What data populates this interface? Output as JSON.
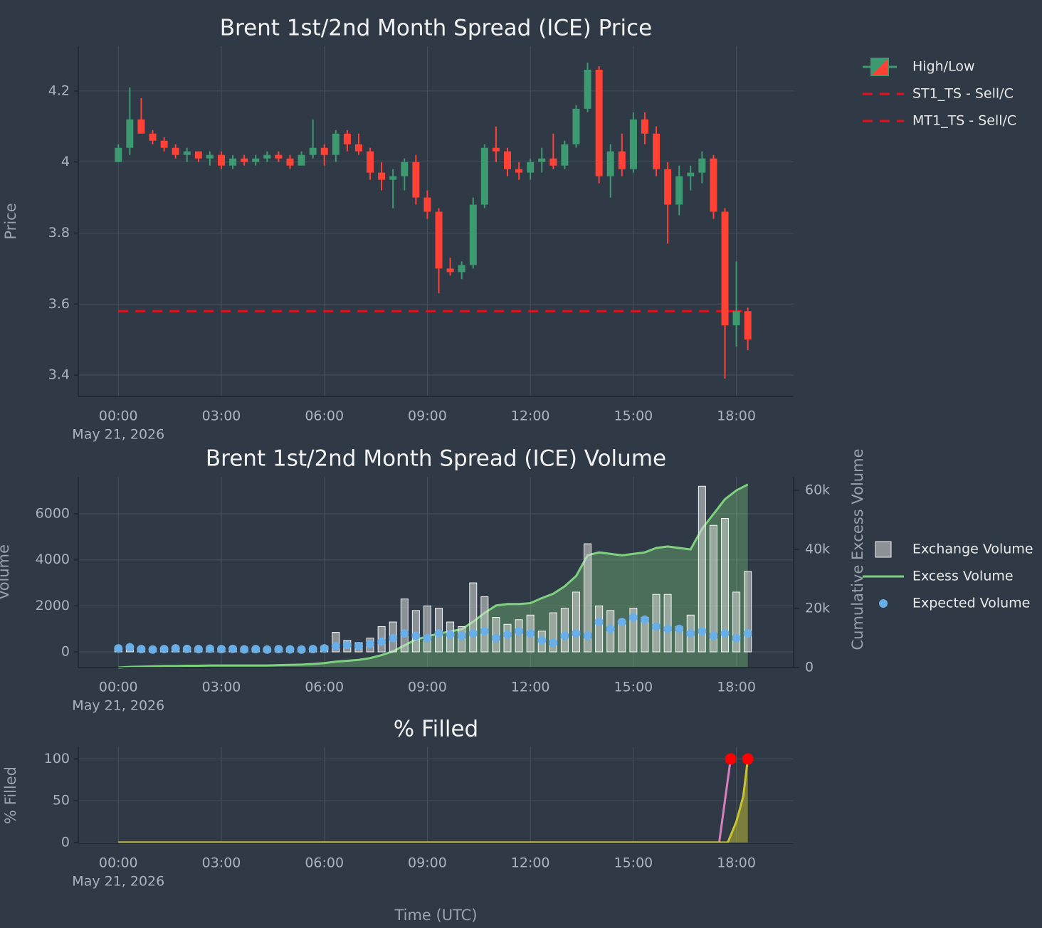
{
  "chart_data": [
    {
      "type": "candlestick",
      "title": "Brent 1st/2nd Month Spread (ICE) Price",
      "y_title": "Price",
      "date_label": "May 21, 2026",
      "name": "High/Low",
      "increasing_color": "#3d9970",
      "decreasing_color": "#ff4136",
      "x": [
        0,
        20,
        40,
        60,
        80,
        100,
        120,
        140,
        160,
        180,
        200,
        220,
        240,
        260,
        280,
        300,
        320,
        340,
        360,
        380,
        400,
        420,
        440,
        460,
        480,
        500,
        520,
        540,
        560,
        580,
        600,
        620,
        640,
        660,
        680,
        700,
        720,
        740,
        760,
        780,
        800,
        820,
        840,
        860,
        880,
        900,
        920,
        940,
        960,
        980,
        1000,
        1020,
        1040,
        1060,
        1080,
        1100
      ],
      "open": [
        4.0,
        4.04,
        4.12,
        4.08,
        4.06,
        4.04,
        4.02,
        4.03,
        4.01,
        4.02,
        3.99,
        4.01,
        4.0,
        4.01,
        4.02,
        4.01,
        3.99,
        4.02,
        4.04,
        4.02,
        4.08,
        4.05,
        4.03,
        3.97,
        3.95,
        3.96,
        4.0,
        3.9,
        3.86,
        3.7,
        3.69,
        3.71,
        3.88,
        4.04,
        4.03,
        3.98,
        3.97,
        4.0,
        4.01,
        3.99,
        4.05,
        4.15,
        4.26,
        3.96,
        4.03,
        3.98,
        4.12,
        4.08,
        3.98,
        3.88,
        3.96,
        3.97,
        4.01,
        3.86,
        3.54,
        3.58
      ],
      "high": [
        4.05,
        4.21,
        4.18,
        4.09,
        4.07,
        4.05,
        4.04,
        4.03,
        4.03,
        4.03,
        4.02,
        4.02,
        4.02,
        4.03,
        4.03,
        4.02,
        4.03,
        4.12,
        4.05,
        4.09,
        4.09,
        4.08,
        4.04,
        4.0,
        3.98,
        4.01,
        4.02,
        3.92,
        3.87,
        3.73,
        3.72,
        3.9,
        4.05,
        4.1,
        4.04,
        4.0,
        4.01,
        4.04,
        4.08,
        4.06,
        4.16,
        4.28,
        4.27,
        4.05,
        4.08,
        4.14,
        4.14,
        4.1,
        4.0,
        3.99,
        3.99,
        4.03,
        4.02,
        3.87,
        3.72,
        3.59
      ],
      "low": [
        4.0,
        4.02,
        4.08,
        4.05,
        4.03,
        4.01,
        4.0,
        4.0,
        3.99,
        3.98,
        3.98,
        3.99,
        3.99,
        4.0,
        4.0,
        3.98,
        3.99,
        4.01,
        3.99,
        4.0,
        4.03,
        4.02,
        3.95,
        3.92,
        3.87,
        3.92,
        3.88,
        3.84,
        3.63,
        3.68,
        3.67,
        3.7,
        3.87,
        4.0,
        3.96,
        3.95,
        3.95,
        3.97,
        3.98,
        3.98,
        4.04,
        4.14,
        3.94,
        3.9,
        3.96,
        3.97,
        4.05,
        3.96,
        3.77,
        3.85,
        3.92,
        3.94,
        3.84,
        3.39,
        3.48,
        3.47
      ],
      "close": [
        4.04,
        4.12,
        4.08,
        4.06,
        4.04,
        4.02,
        4.03,
        4.01,
        4.02,
        3.99,
        4.01,
        4.0,
        4.01,
        4.02,
        4.01,
        3.99,
        4.02,
        4.04,
        4.02,
        4.08,
        4.05,
        4.03,
        3.97,
        3.95,
        3.96,
        4.0,
        3.9,
        3.86,
        3.7,
        3.69,
        3.71,
        3.88,
        4.04,
        4.03,
        3.98,
        3.97,
        4.0,
        4.01,
        3.99,
        4.05,
        4.15,
        4.26,
        3.96,
        4.03,
        3.98,
        4.12,
        4.08,
        3.98,
        3.88,
        3.96,
        3.97,
        4.01,
        3.86,
        3.54,
        3.58,
        3.5
      ],
      "series": [
        {
          "name": "ST1_TS - Sell/C",
          "color": "#e8101c",
          "dash": true,
          "x": [
            0,
            1090
          ],
          "values": [
            3.58,
            3.58
          ]
        },
        {
          "name": "MT1_TS - Sell/C",
          "color": "#e8101c",
          "dash": true,
          "x": [
            1060,
            1090
          ],
          "values": [
            3.58,
            3.58
          ]
        }
      ],
      "xlim": [
        -70,
        1180
      ],
      "xticks": [
        {
          "value": 0,
          "label": "00:00"
        },
        {
          "value": 180,
          "label": "03:00"
        },
        {
          "value": 360,
          "label": "06:00"
        },
        {
          "value": 540,
          "label": "09:00"
        },
        {
          "value": 720,
          "label": "12:00"
        },
        {
          "value": 900,
          "label": "15:00"
        },
        {
          "value": 1080,
          "label": "18:00"
        }
      ],
      "ylim": [
        3.34,
        4.326
      ],
      "yticks": [
        3.4,
        3.6,
        3.8,
        4,
        4.2
      ],
      "grid": true,
      "legend": "right"
    },
    {
      "type": "combo",
      "title": "Brent 1st/2nd Month Spread (ICE) Volume",
      "y_title": "Volume",
      "y2_title": "Cumulative Excess Volume",
      "date_label": "May 21, 2026",
      "x": [
        0,
        20,
        40,
        60,
        80,
        100,
        120,
        140,
        160,
        180,
        200,
        220,
        240,
        260,
        280,
        300,
        320,
        340,
        360,
        380,
        400,
        420,
        440,
        460,
        480,
        500,
        520,
        540,
        560,
        580,
        600,
        620,
        640,
        660,
        680,
        700,
        720,
        740,
        760,
        780,
        800,
        820,
        840,
        860,
        880,
        900,
        920,
        940,
        960,
        980,
        1000,
        1020,
        1040,
        1060,
        1080,
        1100
      ],
      "series": [
        {
          "name": "Exchange Volume",
          "kind": "bar",
          "color": "#d9d9d9",
          "values": [
            150,
            120,
            100,
            80,
            90,
            110,
            100,
            90,
            120,
            100,
            90,
            110,
            100,
            90,
            120,
            110,
            150,
            100,
            250,
            850,
            500,
            400,
            600,
            1100,
            1300,
            2300,
            1800,
            2000,
            1900,
            1300,
            1100,
            3000,
            2400,
            1500,
            1200,
            1400,
            1600,
            900,
            1700,
            1900,
            2600,
            4700,
            2000,
            1800,
            1200,
            1900,
            1500,
            2500,
            2500,
            1100,
            1600,
            7200,
            5500,
            5800,
            2600,
            3500
          ]
        },
        {
          "name": "Excess Volume",
          "kind": "area",
          "axis": "y2",
          "color": "#7fd17f",
          "values": [
            0,
            200,
            300,
            400,
            500,
            500,
            600,
            600,
            700,
            700,
            700,
            700,
            700,
            700,
            800,
            900,
            1000,
            1200,
            1500,
            2000,
            2300,
            2600,
            3200,
            4200,
            5500,
            7500,
            9500,
            10500,
            11500,
            12200,
            13000,
            15500,
            18500,
            21000,
            21500,
            21500,
            21800,
            23500,
            25000,
            27500,
            31000,
            38000,
            39000,
            38500,
            38000,
            38500,
            39000,
            40500,
            41000,
            40500,
            40000,
            47000,
            52000,
            57000,
            60000,
            62000
          ]
        },
        {
          "name": "Expected Volume",
          "kind": "scatter",
          "color": "#6aaee8",
          "values": [
            150,
            200,
            120,
            100,
            120,
            150,
            130,
            120,
            140,
            120,
            130,
            110,
            120,
            100,
            120,
            110,
            100,
            120,
            150,
            250,
            300,
            250,
            350,
            450,
            600,
            800,
            700,
            600,
            800,
            750,
            700,
            800,
            900,
            600,
            750,
            900,
            800,
            500,
            400,
            700,
            800,
            700,
            1300,
            1000,
            1300,
            1500,
            1400,
            1100,
            1000,
            1000,
            800,
            900,
            700,
            800,
            600,
            800
          ]
        }
      ],
      "xlim": [
        -70,
        1180
      ],
      "xticks": [
        {
          "value": 0,
          "label": "00:00"
        },
        {
          "value": 180,
          "label": "03:00"
        },
        {
          "value": 360,
          "label": "06:00"
        },
        {
          "value": 540,
          "label": "09:00"
        },
        {
          "value": 720,
          "label": "12:00"
        },
        {
          "value": 900,
          "label": "15:00"
        },
        {
          "value": 1080,
          "label": "18:00"
        }
      ],
      "ylim": [
        -680,
        7610
      ],
      "yticks": [
        0,
        2000,
        4000,
        6000
      ],
      "y2lim": [
        0,
        64600
      ],
      "y2ticks": [
        0,
        {
          "value": 20000,
          "label": "20k"
        },
        {
          "value": 40000,
          "label": "40k"
        },
        {
          "value": 60000,
          "label": "60k"
        }
      ],
      "grid": true,
      "legend": "right"
    },
    {
      "type": "line",
      "title": "% Filled",
      "y_title": "% Filled",
      "date_label": "May 21, 2026",
      "x_title": "Time (UTC)",
      "series": [
        {
          "color": "#d87fc0",
          "fill": false,
          "end_marker_color": "#ff0000",
          "x": [
            0,
            1050,
            1070
          ],
          "values": [
            0,
            0,
            100
          ]
        },
        {
          "color": "#c9c232",
          "fill": true,
          "end_marker_color": "#ff0000",
          "x": [
            0,
            1065,
            1080,
            1092,
            1100
          ],
          "values": [
            0,
            0,
            25,
            55,
            100
          ]
        }
      ],
      "xlim": [
        -70,
        1180
      ],
      "xticks": [
        {
          "value": 0,
          "label": "00:00"
        },
        {
          "value": 180,
          "label": "03:00"
        },
        {
          "value": 360,
          "label": "06:00"
        },
        {
          "value": 540,
          "label": "09:00"
        },
        {
          "value": 720,
          "label": "12:00"
        },
        {
          "value": 900,
          "label": "15:00"
        },
        {
          "value": 1080,
          "label": "18:00"
        }
      ],
      "ylim": [
        -1,
        114
      ],
      "yticks": [
        0,
        50,
        100
      ],
      "grid": true
    }
  ]
}
